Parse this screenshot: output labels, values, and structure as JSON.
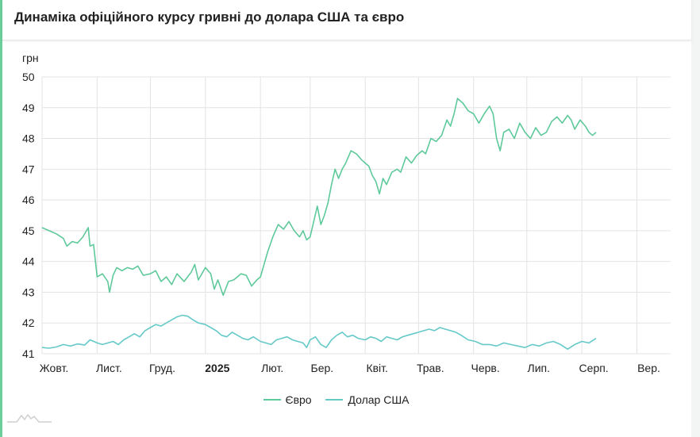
{
  "header": {
    "title": "Динаміка офіційного курсу гривні до долара США та євро"
  },
  "colors": {
    "euro": "#5ec99a",
    "usd": "#66c9c9",
    "grid": "#e3e3e3",
    "accent": "#6ccf9a"
  },
  "chart_data": {
    "type": "line",
    "ylabel": "грн",
    "ylim": [
      41,
      50
    ],
    "yticks": [
      "50",
      "49",
      "48",
      "47",
      "46",
      "45",
      "44",
      "43",
      "42",
      "41"
    ],
    "x_tick_labels": [
      {
        "label": "Жовт.",
        "day": 0,
        "bold": false
      },
      {
        "label": "Лист.",
        "day": 31,
        "bold": false
      },
      {
        "label": "Груд.",
        "day": 61,
        "bold": false
      },
      {
        "label": "2025",
        "day": 92,
        "bold": true
      },
      {
        "label": "Лют.",
        "day": 123,
        "bold": false
      },
      {
        "label": "Бер.",
        "day": 151,
        "bold": false
      },
      {
        "label": "Квіт.",
        "day": 182,
        "bold": false
      },
      {
        "label": "Трав.",
        "day": 212,
        "bold": false
      },
      {
        "label": "Черв.",
        "day": 243,
        "bold": false
      },
      {
        "label": "Лип.",
        "day": 273,
        "bold": false
      },
      {
        "label": "Серп.",
        "day": 304,
        "bold": false
      },
      {
        "label": "Вер.",
        "day": 335,
        "bold": false
      }
    ],
    "x_range_days": [
      0,
      354
    ],
    "grid": true,
    "legend_position": "bottom",
    "series": [
      {
        "name": "Євро",
        "key": "euro",
        "points": [
          [
            0,
            45.1
          ],
          [
            4,
            45.0
          ],
          [
            8,
            44.9
          ],
          [
            12,
            44.75
          ],
          [
            14,
            44.5
          ],
          [
            17,
            44.65
          ],
          [
            20,
            44.6
          ],
          [
            23,
            44.8
          ],
          [
            26,
            45.1
          ],
          [
            27,
            44.5
          ],
          [
            29,
            44.55
          ],
          [
            31,
            43.5
          ],
          [
            34,
            43.6
          ],
          [
            37,
            43.35
          ],
          [
            38,
            43.0
          ],
          [
            40,
            43.55
          ],
          [
            42,
            43.8
          ],
          [
            45,
            43.7
          ],
          [
            48,
            43.8
          ],
          [
            51,
            43.75
          ],
          [
            54,
            43.85
          ],
          [
            57,
            43.55
          ],
          [
            61,
            43.6
          ],
          [
            64,
            43.7
          ],
          [
            67,
            43.35
          ],
          [
            70,
            43.5
          ],
          [
            73,
            43.25
          ],
          [
            76,
            43.6
          ],
          [
            80,
            43.35
          ],
          [
            84,
            43.65
          ],
          [
            86,
            43.9
          ],
          [
            88,
            43.4
          ],
          [
            92,
            43.8
          ],
          [
            95,
            43.6
          ],
          [
            97,
            43.1
          ],
          [
            99,
            43.4
          ],
          [
            102,
            42.9
          ],
          [
            105,
            43.35
          ],
          [
            108,
            43.4
          ],
          [
            110,
            43.5
          ],
          [
            112,
            43.6
          ],
          [
            115,
            43.55
          ],
          [
            118,
            43.2
          ],
          [
            121,
            43.4
          ],
          [
            123,
            43.5
          ],
          [
            127,
            44.3
          ],
          [
            130,
            44.8
          ],
          [
            133,
            45.2
          ],
          [
            136,
            45.05
          ],
          [
            139,
            45.3
          ],
          [
            142,
            45.0
          ],
          [
            145,
            44.8
          ],
          [
            147,
            45.0
          ],
          [
            149,
            44.7
          ],
          [
            151,
            44.8
          ],
          [
            153,
            45.3
          ],
          [
            155,
            45.8
          ],
          [
            157,
            45.2
          ],
          [
            159,
            45.5
          ],
          [
            161,
            45.9
          ],
          [
            163,
            46.5
          ],
          [
            165,
            47.0
          ],
          [
            167,
            46.7
          ],
          [
            169,
            47.0
          ],
          [
            171,
            47.2
          ],
          [
            174,
            47.6
          ],
          [
            177,
            47.5
          ],
          [
            180,
            47.3
          ],
          [
            182,
            47.2
          ],
          [
            184,
            47.1
          ],
          [
            186,
            46.8
          ],
          [
            188,
            46.6
          ],
          [
            190,
            46.2
          ],
          [
            192,
            46.7
          ],
          [
            194,
            46.5
          ],
          [
            197,
            46.9
          ],
          [
            200,
            47.0
          ],
          [
            202,
            46.9
          ],
          [
            205,
            47.4
          ],
          [
            208,
            47.2
          ],
          [
            211,
            47.45
          ],
          [
            214,
            47.6
          ],
          [
            216,
            47.5
          ],
          [
            219,
            48.0
          ],
          [
            222,
            47.9
          ],
          [
            225,
            48.1
          ],
          [
            228,
            48.6
          ],
          [
            230,
            48.4
          ],
          [
            232,
            48.8
          ],
          [
            234,
            49.3
          ],
          [
            237,
            49.15
          ],
          [
            240,
            48.9
          ],
          [
            243,
            48.8
          ],
          [
            246,
            48.5
          ],
          [
            249,
            48.8
          ],
          [
            252,
            49.05
          ],
          [
            254,
            48.8
          ],
          [
            256,
            48.0
          ],
          [
            258,
            47.6
          ],
          [
            260,
            48.2
          ],
          [
            263,
            48.3
          ],
          [
            266,
            48.0
          ],
          [
            269,
            48.5
          ],
          [
            272,
            48.2
          ],
          [
            275,
            48.0
          ],
          [
            278,
            48.35
          ],
          [
            281,
            48.1
          ],
          [
            284,
            48.2
          ],
          [
            287,
            48.55
          ],
          [
            290,
            48.7
          ],
          [
            293,
            48.5
          ],
          [
            296,
            48.75
          ],
          [
            298,
            48.6
          ],
          [
            300,
            48.3
          ],
          [
            303,
            48.6
          ],
          [
            306,
            48.4
          ],
          [
            308,
            48.2
          ],
          [
            310,
            48.1
          ],
          [
            312,
            48.2
          ]
        ]
      },
      {
        "name": "Долар США",
        "key": "usd",
        "points": [
          [
            0,
            41.2
          ],
          [
            4,
            41.18
          ],
          [
            8,
            41.22
          ],
          [
            12,
            41.3
          ],
          [
            16,
            41.25
          ],
          [
            20,
            41.32
          ],
          [
            24,
            41.28
          ],
          [
            27,
            41.45
          ],
          [
            31,
            41.35
          ],
          [
            34,
            41.3
          ],
          [
            37,
            41.35
          ],
          [
            40,
            41.4
          ],
          [
            43,
            41.3
          ],
          [
            46,
            41.45
          ],
          [
            49,
            41.55
          ],
          [
            52,
            41.65
          ],
          [
            55,
            41.55
          ],
          [
            58,
            41.75
          ],
          [
            61,
            41.85
          ],
          [
            64,
            41.95
          ],
          [
            67,
            41.9
          ],
          [
            70,
            42.0
          ],
          [
            73,
            42.1
          ],
          [
            76,
            42.2
          ],
          [
            79,
            42.25
          ],
          [
            82,
            42.22
          ],
          [
            85,
            42.1
          ],
          [
            88,
            42.0
          ],
          [
            92,
            41.95
          ],
          [
            95,
            41.85
          ],
          [
            98,
            41.75
          ],
          [
            101,
            41.6
          ],
          [
            104,
            41.55
          ],
          [
            107,
            41.7
          ],
          [
            110,
            41.6
          ],
          [
            113,
            41.5
          ],
          [
            116,
            41.45
          ],
          [
            119,
            41.55
          ],
          [
            123,
            41.4
          ],
          [
            126,
            41.35
          ],
          [
            129,
            41.3
          ],
          [
            132,
            41.45
          ],
          [
            135,
            41.5
          ],
          [
            138,
            41.55
          ],
          [
            141,
            41.45
          ],
          [
            144,
            41.4
          ],
          [
            147,
            41.35
          ],
          [
            149,
            41.2
          ],
          [
            151,
            41.45
          ],
          [
            154,
            41.55
          ],
          [
            157,
            41.3
          ],
          [
            160,
            41.2
          ],
          [
            163,
            41.45
          ],
          [
            166,
            41.6
          ],
          [
            169,
            41.7
          ],
          [
            172,
            41.55
          ],
          [
            175,
            41.6
          ],
          [
            178,
            41.5
          ],
          [
            182,
            41.45
          ],
          [
            185,
            41.55
          ],
          [
            188,
            41.5
          ],
          [
            191,
            41.4
          ],
          [
            194,
            41.55
          ],
          [
            197,
            41.5
          ],
          [
            200,
            41.45
          ],
          [
            203,
            41.55
          ],
          [
            206,
            41.6
          ],
          [
            209,
            41.65
          ],
          [
            212,
            41.7
          ],
          [
            215,
            41.75
          ],
          [
            218,
            41.8
          ],
          [
            221,
            41.75
          ],
          [
            224,
            41.85
          ],
          [
            227,
            41.8
          ],
          [
            230,
            41.75
          ],
          [
            233,
            41.7
          ],
          [
            236,
            41.6
          ],
          [
            240,
            41.45
          ],
          [
            244,
            41.4
          ],
          [
            248,
            41.3
          ],
          [
            252,
            41.3
          ],
          [
            256,
            41.25
          ],
          [
            260,
            41.35
          ],
          [
            264,
            41.3
          ],
          [
            268,
            41.25
          ],
          [
            272,
            41.2
          ],
          [
            276,
            41.3
          ],
          [
            280,
            41.25
          ],
          [
            284,
            41.35
          ],
          [
            288,
            41.4
          ],
          [
            292,
            41.3
          ],
          [
            296,
            41.15
          ],
          [
            300,
            41.3
          ],
          [
            304,
            41.4
          ],
          [
            308,
            41.35
          ],
          [
            312,
            41.5
          ]
        ]
      }
    ]
  }
}
